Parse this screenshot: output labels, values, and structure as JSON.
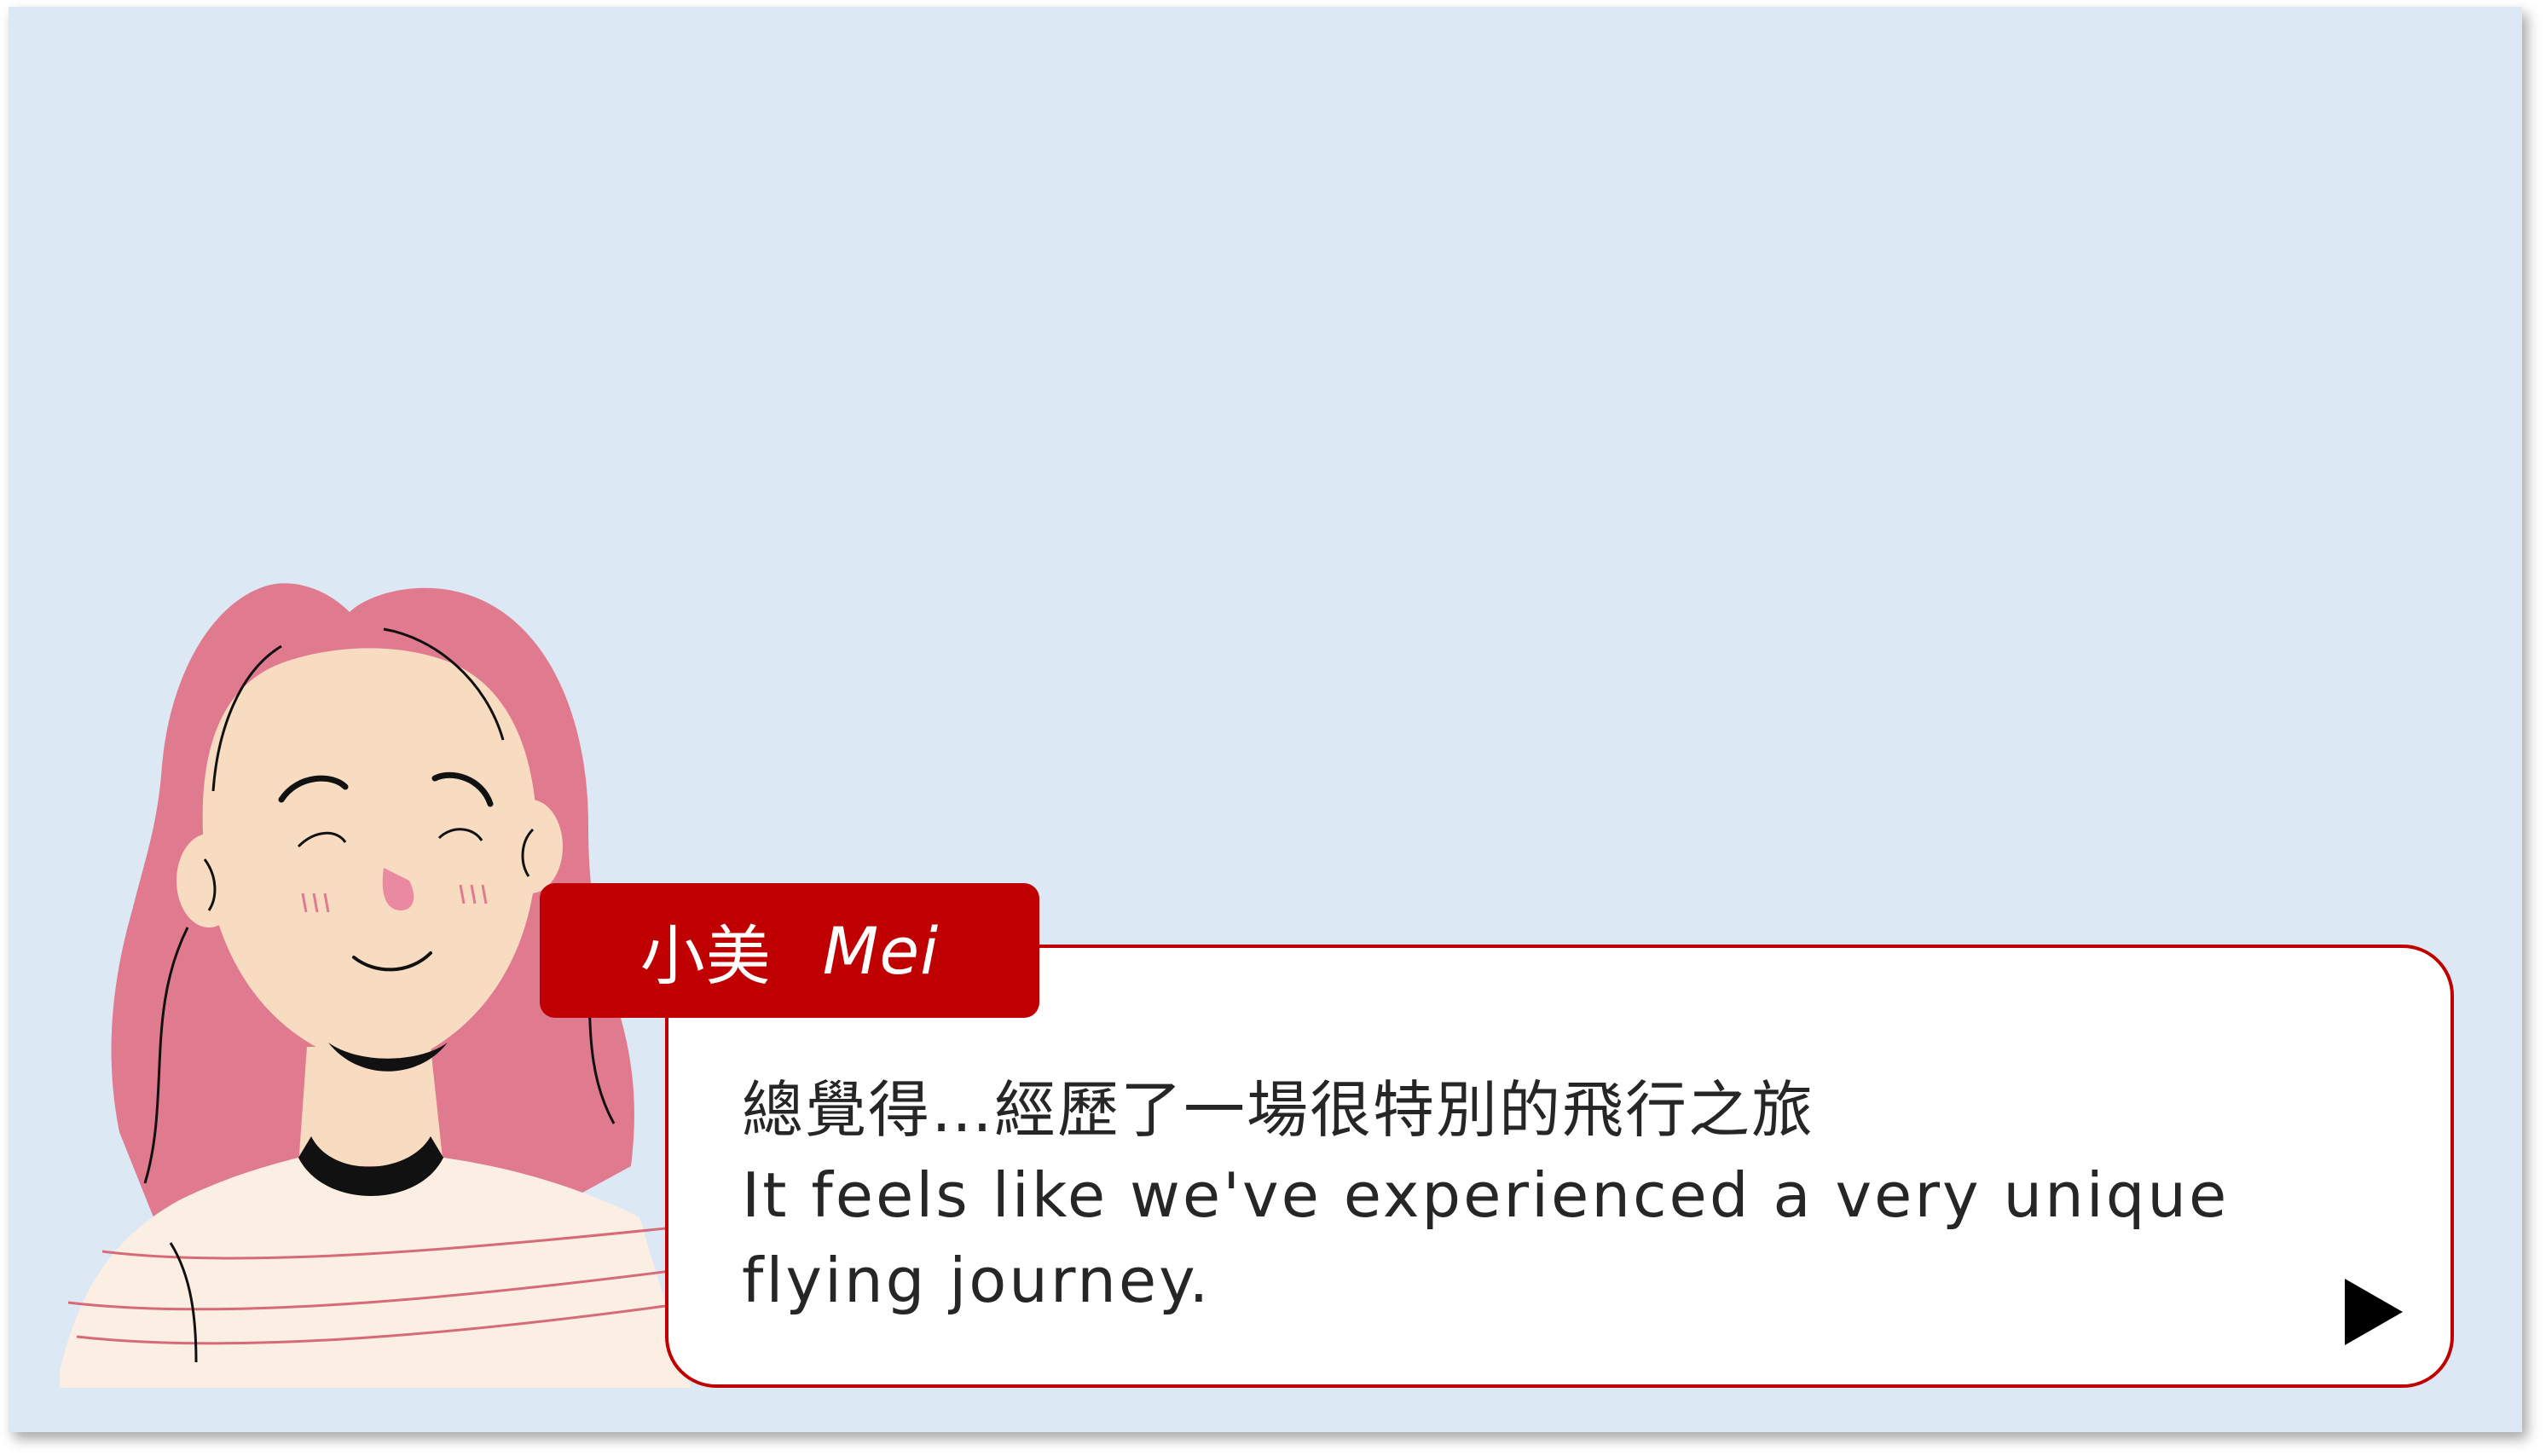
{
  "dialog": {
    "speaker_zh": "小美",
    "speaker_en": "Mei",
    "line_zh": "總覺得…經歷了一場很特別的飛行之旅",
    "line_en": "It feels like we've experienced a very unique flying journey."
  },
  "icons": {
    "next": "play-triangle-icon",
    "character": "woman-portrait"
  },
  "colors": {
    "background": "#dde8f5",
    "accent": "#c00000",
    "hair": "#e07a8f",
    "skin": "#f8dcc2"
  }
}
